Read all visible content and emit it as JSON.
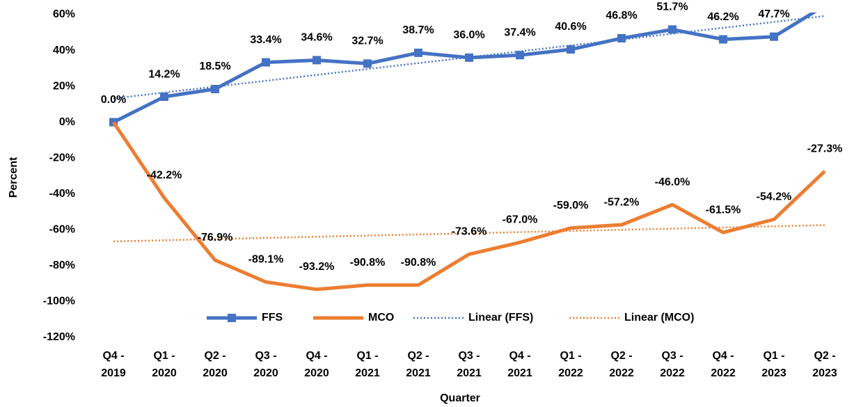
{
  "chart_data": {
    "type": "line",
    "x_label": "Quarter",
    "y_label": "Percent",
    "categories": [
      "Q4 - 2019",
      "Q1 - 2020",
      "Q2 - 2020",
      "Q3 - 2020",
      "Q4 - 2020",
      "Q1 - 2021",
      "Q2 - 2021",
      "Q3 - 2021",
      "Q4 - 2021",
      "Q1 - 2022",
      "Q2 - 2022",
      "Q3 - 2022",
      "Q4 - 2022",
      "Q1 - 2023",
      "Q2 - 2023"
    ],
    "series": [
      {
        "name": "FFS",
        "color": "#4472c4",
        "marker": "square",
        "values": [
          0.0,
          14.2,
          18.5,
          33.4,
          34.6,
          32.7,
          38.7,
          36.0,
          37.4,
          40.6,
          46.8,
          51.7,
          46.2,
          47.7,
          65
        ],
        "value_labels": [
          "0.0%",
          "14.2%",
          "18.5%",
          "33.4%",
          "34.6%",
          "32.7%",
          "38.7%",
          "36.0%",
          "37.4%",
          "40.6%",
          "46.8%",
          "51.7%",
          "46.2%",
          "47.7%",
          null
        ]
      },
      {
        "name": "MCO",
        "color": "#ed7d31",
        "values": [
          0,
          -42.2,
          -76.9,
          -89.1,
          -93.2,
          -90.8,
          -90.8,
          -73.6,
          -67.0,
          -59.0,
          -57.2,
          -46.0,
          -61.5,
          -54.2,
          -27.3
        ],
        "value_labels": [
          null,
          "-42.2%",
          "-76.9%",
          "-89.1%",
          "-93.2%",
          "-90.8%",
          "-90.8%",
          "-73.6%",
          "-67.0%",
          "-59.0%",
          "-57.2%",
          "-46.0%",
          "-61.5%",
          "-54.2%",
          "-27.3%"
        ]
      }
    ],
    "trendlines": [
      {
        "name": "Linear (FFS)",
        "color": "#4472c4",
        "series": 0,
        "kind": "linear"
      },
      {
        "name": "Linear (MCO)",
        "color": "#ed7d31",
        "series": 1,
        "kind": "linear"
      }
    ],
    "ylim": [
      -120,
      60
    ],
    "yticks": [
      {
        "value": -120,
        "label": "-120%"
      },
      {
        "value": -100,
        "label": "-100%"
      },
      {
        "value": -80,
        "label": "-80%"
      },
      {
        "value": -60,
        "label": "-60%"
      },
      {
        "value": -40,
        "label": "-40%"
      },
      {
        "value": -20,
        "label": "-20%"
      },
      {
        "value": 0,
        "label": "0%"
      },
      {
        "value": 20,
        "label": "20%"
      },
      {
        "value": 40,
        "label": "40%"
      },
      {
        "value": 60,
        "label": "60%"
      }
    ],
    "grid": false,
    "legend": "bottom"
  }
}
